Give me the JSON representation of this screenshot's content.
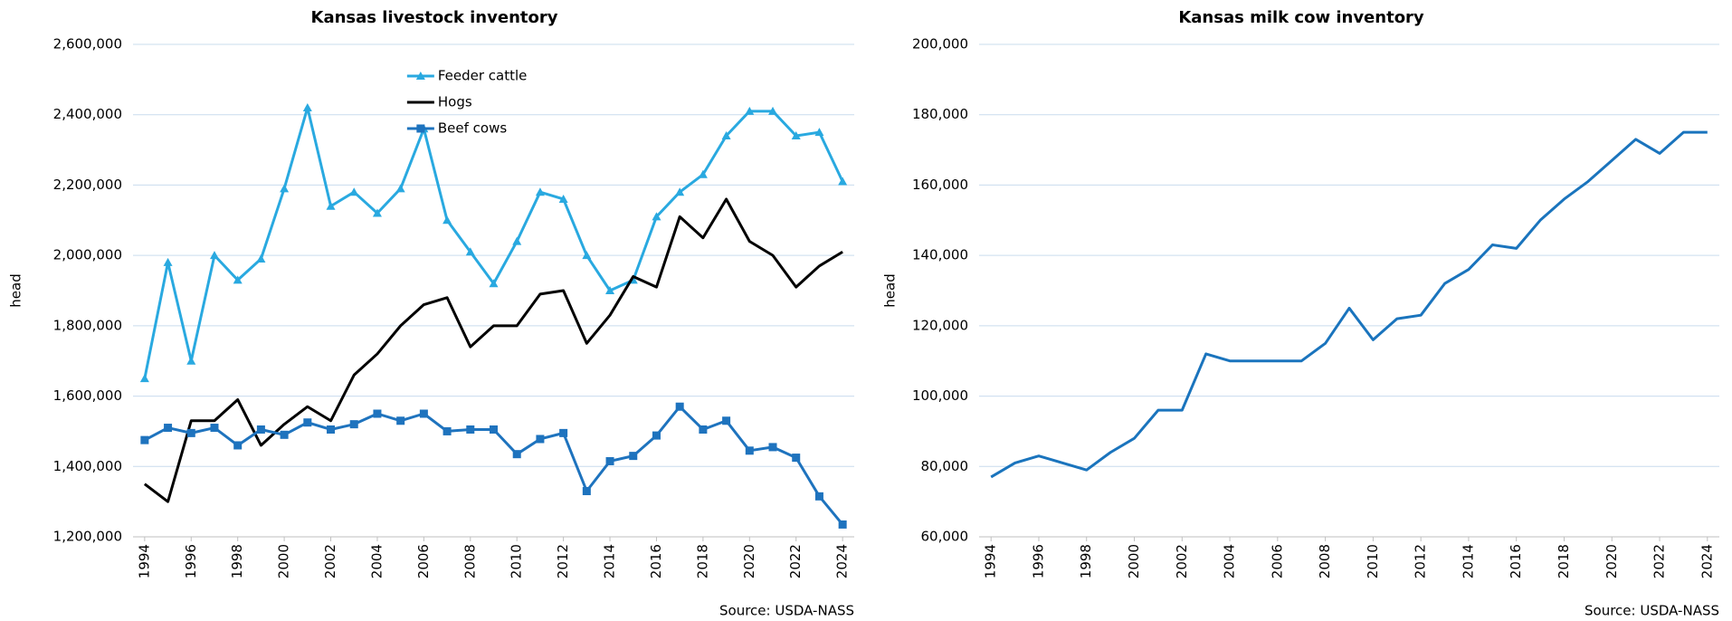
{
  "chart_data": [
    {
      "type": "line",
      "title": "Kansas livestock inventory",
      "y_label": "head",
      "source": "Source: USDA-NASS",
      "x": [
        1994,
        1995,
        1996,
        1997,
        1998,
        1999,
        2000,
        2001,
        2002,
        2003,
        2004,
        2005,
        2006,
        2007,
        2008,
        2009,
        2010,
        2011,
        2012,
        2013,
        2014,
        2015,
        2016,
        2017,
        2018,
        2019,
        2020,
        2021,
        2022,
        2023,
        2024
      ],
      "xlim": [
        1993.5,
        2024.5
      ],
      "xticks": [
        1994,
        1996,
        1998,
        2000,
        2002,
        2004,
        2006,
        2008,
        2010,
        2012,
        2014,
        2016,
        2018,
        2020,
        2022,
        2024
      ],
      "ylim": [
        1200000,
        2600000
      ],
      "yticks": [
        {
          "value": 1200000,
          "label": "1,200,000"
        },
        {
          "value": 1400000,
          "label": "1,400,000"
        },
        {
          "value": 1600000,
          "label": "1,600,000"
        },
        {
          "value": 1800000,
          "label": "1,800,000"
        },
        {
          "value": 2000000,
          "label": "2,000,000"
        },
        {
          "value": 2200000,
          "label": "2,200,000"
        },
        {
          "value": 2400000,
          "label": "2,400,000"
        },
        {
          "value": 2600000,
          "label": "2,600,000"
        }
      ],
      "grid": true,
      "legend": "top-center",
      "series": [
        {
          "name": "Feeder cattle",
          "color": "#29a9e0",
          "marker": "triangle",
          "values": [
            1650000,
            1980000,
            1700000,
            2000000,
            1930000,
            1990000,
            2190000,
            2420000,
            2140000,
            2180000,
            2120000,
            2190000,
            2360000,
            2100000,
            2010000,
            1920000,
            2040000,
            2180000,
            2160000,
            2000000,
            1900000,
            1930000,
            2110000,
            2180000,
            2230000,
            2340000,
            2410000,
            2410000,
            2340000,
            2350000,
            2210000
          ]
        },
        {
          "name": "Hogs",
          "color": "#000000",
          "marker": "none",
          "values": [
            1350000,
            1300000,
            1530000,
            1530000,
            1590000,
            1460000,
            1520000,
            1570000,
            1530000,
            1660000,
            1720000,
            1800000,
            1860000,
            1880000,
            1740000,
            1800000,
            1800000,
            1890000,
            1900000,
            1750000,
            1830000,
            1940000,
            1910000,
            2110000,
            2050000,
            2160000,
            2040000,
            2000000,
            1910000,
            1970000,
            2010000
          ]
        },
        {
          "name": "Beef cows",
          "color": "#1e73be",
          "marker": "square",
          "values": [
            1475000,
            1510000,
            1495000,
            1510000,
            1460000,
            1505000,
            1490000,
            1525000,
            1505000,
            1520000,
            1550000,
            1530000,
            1550000,
            1500000,
            1505000,
            1505000,
            1435000,
            1478000,
            1495000,
            1330000,
            1415000,
            1430000,
            1488000,
            1570000,
            1505000,
            1530000,
            1445000,
            1455000,
            1425000,
            1315000,
            1235000
          ]
        }
      ]
    },
    {
      "type": "line",
      "title": "Kansas milk cow inventory",
      "y_label": "head",
      "source": "Source: USDA-NASS",
      "x": [
        1994,
        1995,
        1996,
        1997,
        1998,
        1999,
        2000,
        2001,
        2002,
        2003,
        2004,
        2005,
        2006,
        2007,
        2008,
        2009,
        2010,
        2011,
        2012,
        2013,
        2014,
        2015,
        2016,
        2017,
        2018,
        2019,
        2020,
        2021,
        2022,
        2023,
        2024
      ],
      "xlim": [
        1993.5,
        2024.5
      ],
      "xticks": [
        1994,
        1996,
        1998,
        2000,
        2002,
        2004,
        2006,
        2008,
        2010,
        2012,
        2014,
        2016,
        2018,
        2020,
        2022,
        2024
      ],
      "ylim": [
        60000,
        200000
      ],
      "yticks": [
        {
          "value": 60000,
          "label": "60,000"
        },
        {
          "value": 80000,
          "label": "80,000"
        },
        {
          "value": 100000,
          "label": "100,000"
        },
        {
          "value": 120000,
          "label": "120,000"
        },
        {
          "value": 140000,
          "label": "140,000"
        },
        {
          "value": 160000,
          "label": "160,000"
        },
        {
          "value": 180000,
          "label": "180,000"
        },
        {
          "value": 200000,
          "label": "200,000"
        }
      ],
      "grid": true,
      "series": [
        {
          "color": "#1a74bd",
          "marker": "none",
          "values": [
            77000,
            81000,
            83000,
            81000,
            79000,
            84000,
            88000,
            96000,
            96000,
            112000,
            110000,
            110000,
            110000,
            110000,
            115000,
            125000,
            116000,
            122000,
            123000,
            132000,
            136000,
            143000,
            142000,
            150000,
            156000,
            161000,
            167000,
            173000,
            169000,
            175000,
            175000
          ]
        }
      ]
    }
  ]
}
